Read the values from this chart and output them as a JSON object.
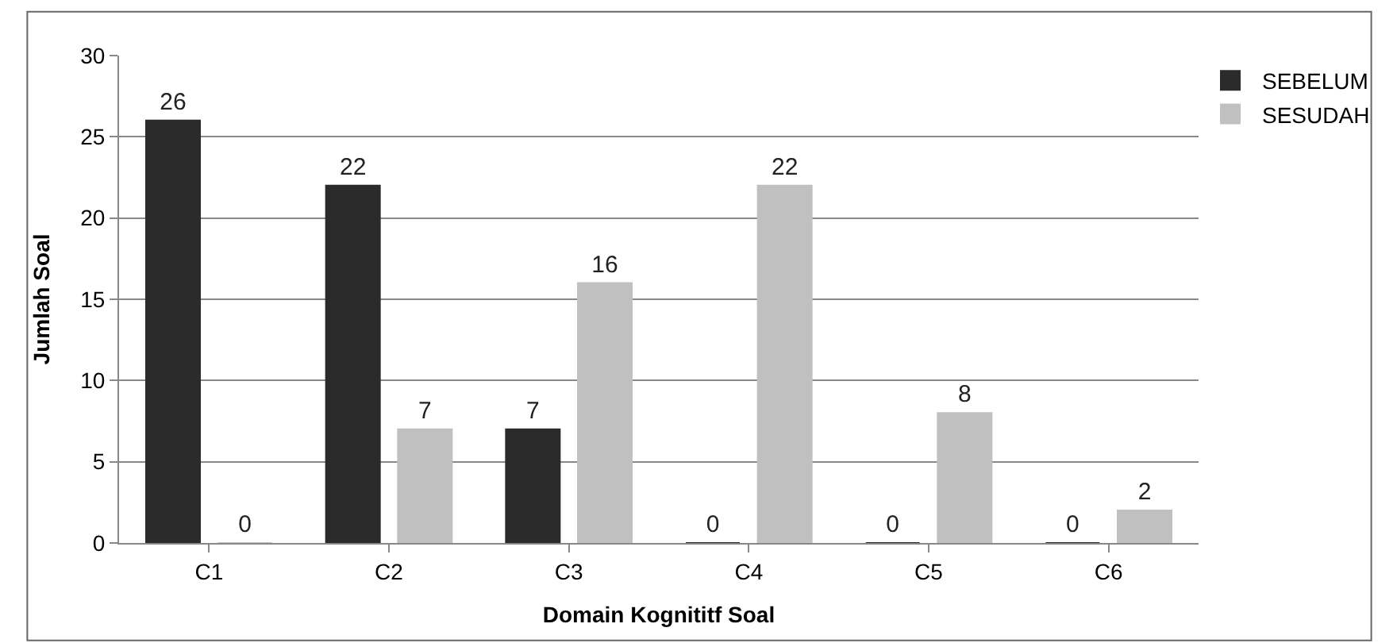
{
  "chart_data": {
    "type": "bar",
    "xlabel": "Domain Kognititf Soal",
    "ylabel": "Jumlah Soal",
    "categories": [
      "C1",
      "C2",
      "C3",
      "C4",
      "C5",
      "C6"
    ],
    "series": [
      {
        "name": "SEBELUM",
        "color": "#2b2b2b",
        "values": [
          26,
          22,
          7,
          0,
          0,
          0
        ]
      },
      {
        "name": "SESUDAH",
        "color": "#c0c0c0",
        "values": [
          0,
          7,
          16,
          22,
          8,
          2
        ]
      }
    ],
    "ylim": [
      0,
      30
    ],
    "yticks": [
      0,
      5,
      10,
      15,
      20,
      25,
      30
    ],
    "grid": "y",
    "legend": "top right",
    "data_labels": true
  }
}
